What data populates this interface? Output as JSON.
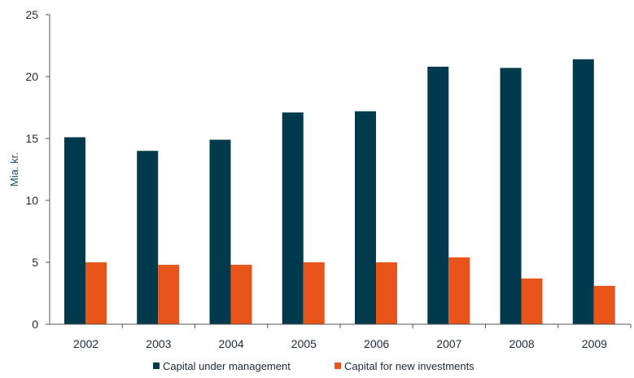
{
  "chart_data": {
    "type": "bar",
    "categories": [
      "2002",
      "2003",
      "2004",
      "2005",
      "2006",
      "2007",
      "2008",
      "2009"
    ],
    "series": [
      {
        "name": "Capital under management",
        "values": [
          15.1,
          14.0,
          14.9,
          17.1,
          17.2,
          20.8,
          20.7,
          21.4
        ],
        "color": "#013a4d"
      },
      {
        "name": "Capital for new investments",
        "values": [
          5.0,
          4.8,
          4.8,
          5.0,
          5.0,
          5.4,
          3.7,
          3.1
        ],
        "color": "#e8541a"
      }
    ],
    "ylabel": "Mia. kr.",
    "ylim": [
      0,
      25
    ],
    "yticks": [
      0,
      5,
      10,
      15,
      20,
      25
    ],
    "grid": false,
    "legend": "bottom-center"
  }
}
